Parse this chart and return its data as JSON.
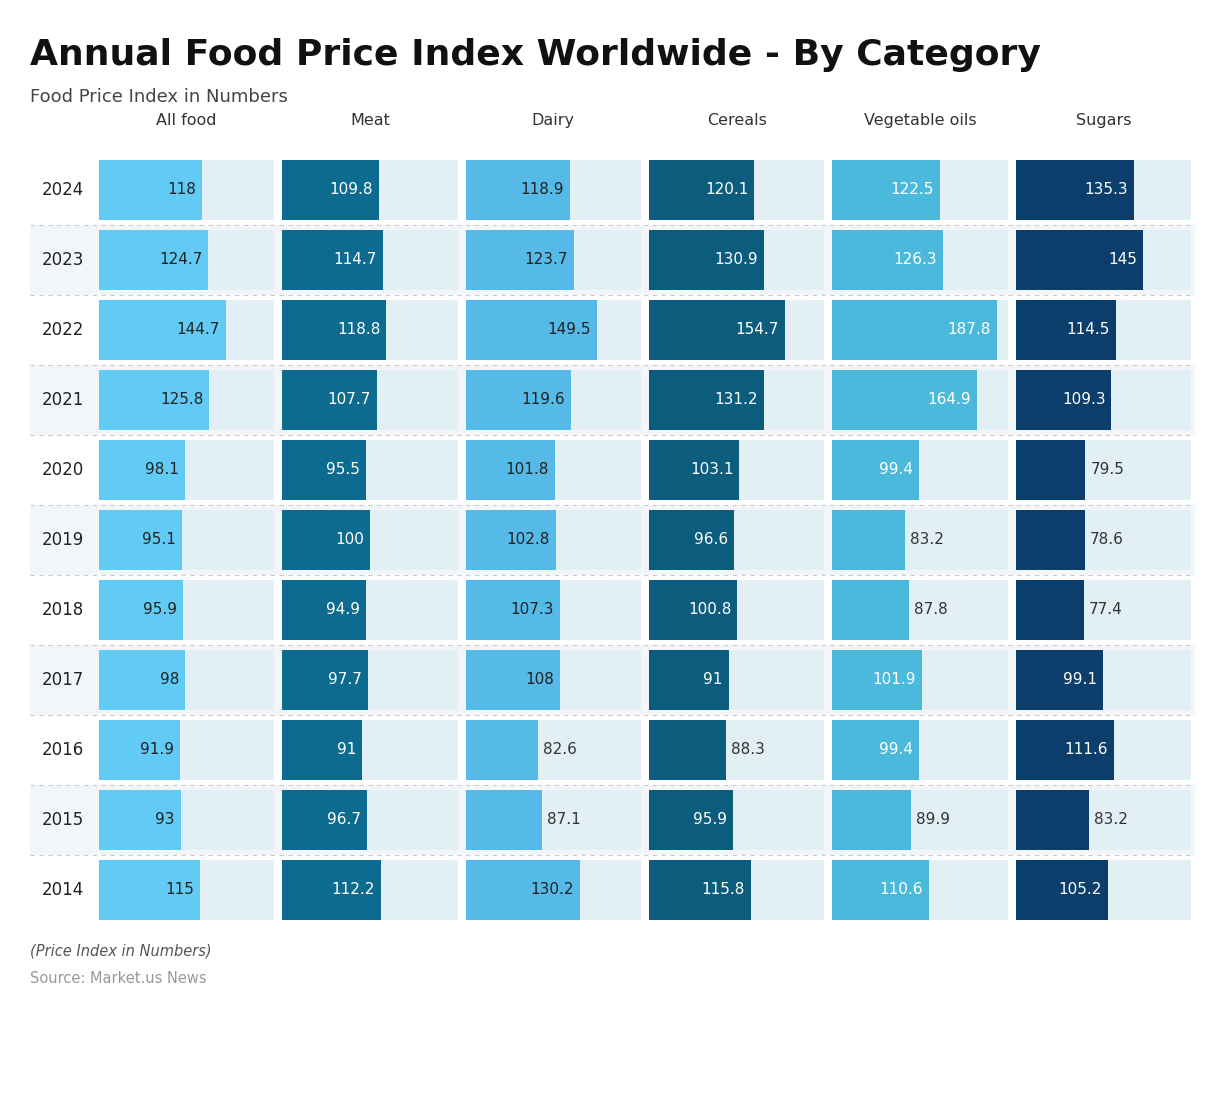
{
  "title": "Annual Food Price Index Worldwide - By Category",
  "subtitle": "Food Price Index in Numbers",
  "footer_italic": "(Price Index in Numbers)",
  "footer_source": "Source: Market.us News",
  "columns": [
    "All food",
    "Meat",
    "Dairy",
    "Cereals",
    "Vegetable oils",
    "Sugars"
  ],
  "years": [
    2024,
    2023,
    2022,
    2021,
    2020,
    2019,
    2018,
    2017,
    2016,
    2015,
    2014
  ],
  "data": {
    "All food": [
      118,
      124.7,
      144.7,
      125.8,
      98.1,
      95.1,
      95.9,
      98,
      91.9,
      93,
      115
    ],
    "Meat": [
      109.8,
      114.7,
      118.8,
      107.7,
      95.5,
      100,
      94.9,
      97.7,
      91,
      96.7,
      112.2
    ],
    "Dairy": [
      118.9,
      123.7,
      149.5,
      119.6,
      101.8,
      102.8,
      107.3,
      108,
      82.6,
      87.1,
      130.2
    ],
    "Cereals": [
      120.1,
      130.9,
      154.7,
      131.2,
      103.1,
      96.6,
      100.8,
      91,
      88.3,
      95.9,
      115.8
    ],
    "Vegetable oils": [
      122.5,
      126.3,
      187.8,
      164.9,
      99.4,
      83.2,
      87.8,
      101.9,
      99.4,
      89.9,
      110.6
    ],
    "Sugars": [
      135.3,
      145,
      114.5,
      109.3,
      79.5,
      78.6,
      77.4,
      99.1,
      111.6,
      83.2,
      105.2
    ]
  },
  "col_colors": {
    "All food": "#62CBF5",
    "Meat": "#0C6B8E",
    "Dairy": "#55BAE8",
    "Cereals": "#0C5D7D",
    "Vegetable oils": "#4AB9DC",
    "Sugars": "#0C3E6B"
  },
  "text_colors": {
    "All food": "#222222",
    "Meat": "#FFFFFF",
    "Dairy": "#222222",
    "Cereals": "#FFFFFF",
    "Vegetable oils": "#FFFFFF",
    "Sugars": "#FFFFFF"
  },
  "cell_bg": "#E2EFF5",
  "max_value": 200,
  "bg_color": "#FFFFFF",
  "row_bg_colors": [
    "#FFFFFF",
    "#F2F6F9"
  ],
  "sep_color": "#CCCCCC",
  "year_color": "#222222",
  "title_color": "#111111",
  "subtitle_color": "#444444",
  "footer_italic_color": "#555555",
  "footer_source_color": "#999999"
}
